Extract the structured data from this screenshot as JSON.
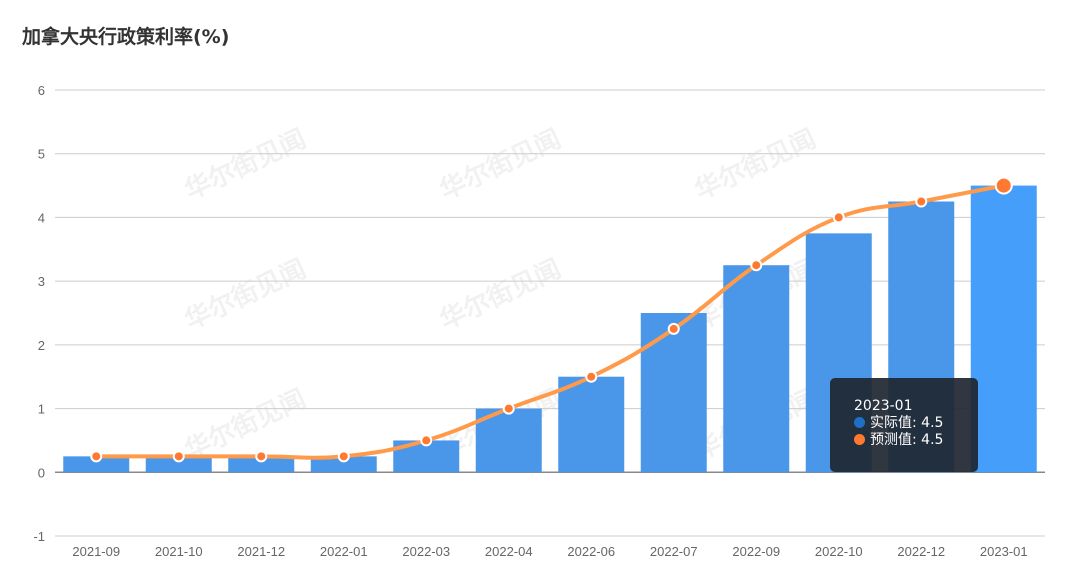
{
  "chart_data": {
    "type": "bar+line",
    "title": "加拿大央行政策利率(%)",
    "categories": [
      "2021-09",
      "2021-10",
      "2021-12",
      "2022-01",
      "2022-03",
      "2022-04",
      "2022-06",
      "2022-07",
      "2022-09",
      "2022-10",
      "2022-12",
      "2023-01"
    ],
    "series": [
      {
        "name": "实际值",
        "type": "bar",
        "color": "#4a97ea",
        "values": [
          0.25,
          0.25,
          0.25,
          0.25,
          0.5,
          1,
          1.5,
          2.5,
          3.25,
          3.75,
          4.25,
          4.5
        ]
      },
      {
        "name": "预测值",
        "type": "line",
        "color": "#ff9a4a",
        "values": [
          0.25,
          0.25,
          0.25,
          0.25,
          0.5,
          1,
          1.5,
          2.25,
          3.25,
          4,
          4.25,
          4.5
        ]
      }
    ],
    "ylim": [
      -1,
      6
    ],
    "yticks": [
      -1,
      0,
      1,
      2,
      3,
      4,
      5,
      6
    ],
    "grid": true,
    "tooltip": {
      "category": "2023-01",
      "rows": [
        {
          "label": "实际值",
          "value": "4.5",
          "color": "#1f6fc5"
        },
        {
          "label": "预测值",
          "value": "4.5",
          "color": "#ff7a30"
        }
      ]
    },
    "watermark": "华尔街见闻"
  }
}
